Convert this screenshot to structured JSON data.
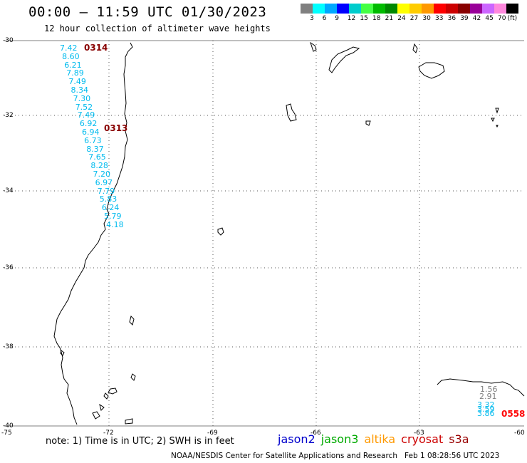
{
  "title": "00:00 – 11:59 UTC 01/30/2023",
  "subtitle": "12 hour collection of altimeter wave heights",
  "legend": {
    "colors": [
      "#808080",
      "#00ffff",
      "#00a8ff",
      "#0000ff",
      "#00cccc",
      "#44ff44",
      "#00bb00",
      "#008800",
      "#ffff00",
      "#ffcc00",
      "#ff9900",
      "#ff0000",
      "#cc0000",
      "#880000",
      "#990099",
      "#cc66ff",
      "#ff88dd",
      "#000000"
    ],
    "labels": [
      "3",
      "6",
      "9",
      "12",
      "15",
      "18",
      "21",
      "24",
      "27",
      "30",
      "33",
      "36",
      "39",
      "42",
      "45",
      "70"
    ],
    "unit": "(ft)"
  },
  "axes": {
    "lat_labels": [
      "-30",
      "-32",
      "-34",
      "-36",
      "-38",
      "-40"
    ],
    "lon_labels": [
      "-75",
      "-72",
      "-69",
      "-66",
      "-63",
      "-60"
    ]
  },
  "track_main": {
    "label_top": "0314",
    "label_mid": "0313",
    "values": [
      "7.42",
      "8.60",
      "6.21",
      "7.89",
      "7.49",
      "8.34",
      "7.30",
      "7.52",
      "7.49",
      "6.92",
      "6.94",
      "6.73",
      "8.37",
      "7.65",
      "8.28",
      "7.20",
      "6.97",
      "7.79",
      "5.83",
      "6.24",
      "5.79",
      "4.18"
    ]
  },
  "track_se": {
    "label": "0558",
    "gray_values": [
      "1.56",
      "2.91"
    ],
    "cyan_values": [
      "3.32",
      "3.59",
      "3.86"
    ]
  },
  "note": "note: 1) Time is in UTC; 2) SWH is in feet",
  "satellites": [
    {
      "name": "jason2",
      "color": "#0000cc"
    },
    {
      "name": "jason3",
      "color": "#00aa00"
    },
    {
      "name": "altika",
      "color": "#ff9900"
    },
    {
      "name": "cryosat",
      "color": "#cc0000"
    },
    {
      "name": "s3a",
      "color": "#990000"
    }
  ],
  "credit": "NOAA/NESDIS Center for Satellite Applications and Research",
  "timestamp": "Feb  1 08:28:56 UTC 2023",
  "colors": {
    "wave_cyan": "#00bbee",
    "wave_gray": "#808080",
    "pass_dark_red": "#880000",
    "pass_red": "#ff0000"
  }
}
